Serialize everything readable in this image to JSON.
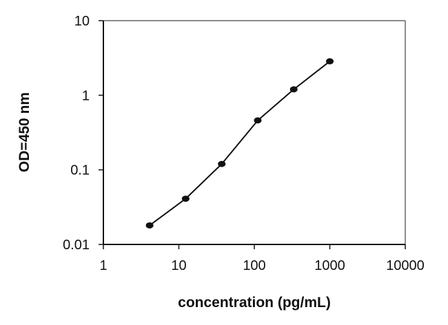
{
  "chart_data": {
    "type": "line",
    "title": "",
    "xlabel": "concentration (pg/mL)",
    "ylabel": "OD=450 nm",
    "xscale": "log",
    "yscale": "log",
    "xlim": [
      1,
      10000
    ],
    "ylim": [
      0.01,
      10
    ],
    "x_ticks": [
      1,
      10,
      100,
      1000,
      10000
    ],
    "x_tick_labels": [
      "1",
      "10",
      "100",
      "1000",
      "10000"
    ],
    "y_ticks": [
      0.01,
      0.1,
      1,
      10
    ],
    "y_tick_labels": [
      "0.01",
      "0.1",
      "1",
      "10"
    ],
    "grid": false,
    "legend": "none",
    "series": [
      {
        "x": [
          4.1,
          12.3,
          37,
          111,
          333,
          1000
        ],
        "y": [
          0.018,
          0.041,
          0.12,
          0.46,
          1.2,
          2.85
        ],
        "color": "#111111",
        "marker": "circle"
      }
    ]
  }
}
